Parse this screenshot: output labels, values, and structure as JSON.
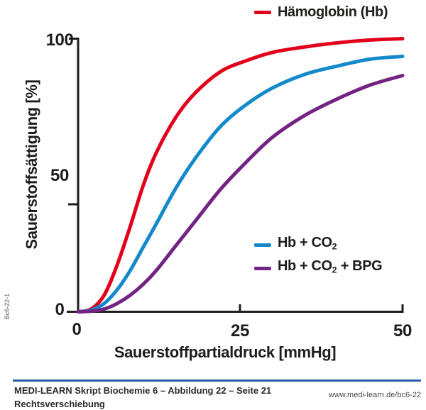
{
  "watermark": "Bc6-22-1",
  "chart_data": {
    "type": "line",
    "title": "",
    "xlabel": "Sauerstoffpartialdruck [mmHg]",
    "ylabel": "Sauerstoffsättigung [%]",
    "xlim": [
      0,
      50
    ],
    "ylim": [
      0,
      100
    ],
    "x_ticks": [
      0,
      25,
      50
    ],
    "y_ticks": [
      0,
      50,
      100
    ],
    "grid": false,
    "legend_position": "Hb top outside; Hb+CO2 and Hb+CO2+BPG inside lower-right",
    "x": [
      0,
      2,
      4,
      6,
      8,
      10,
      12,
      15,
      18,
      22,
      26,
      30,
      35,
      40,
      45,
      50
    ],
    "series": [
      {
        "id": "hb",
        "name": "Hämoglobin (Hb)",
        "color": "#e2001a",
        "values": [
          0,
          1,
          6,
          17,
          31,
          46,
          58,
          71,
          80,
          88,
          92,
          95,
          97,
          98.5,
          99.5,
          100
        ]
      },
      {
        "id": "hb-co2",
        "name": "Hb + CO2",
        "color": "#1489cb",
        "values": [
          0,
          0.6,
          3,
          8,
          15,
          23.5,
          32,
          45,
          56,
          68,
          76,
          82,
          87,
          90,
          92.5,
          93.5
        ]
      },
      {
        "id": "hb-co2-bpg",
        "name": "Hb + CO2 + BPG",
        "color": "#732382",
        "values": [
          0,
          0.2,
          1,
          3,
          6,
          10,
          15,
          24,
          33,
          45,
          55,
          64,
          72,
          78,
          83,
          86.5
        ]
      }
    ]
  },
  "legend": {
    "top": {
      "pre": "Hämoglobin (Hb)",
      "sub": "",
      "post": ""
    },
    "items": [
      {
        "pre": "Hb + CO",
        "sub": "2",
        "post": ""
      },
      {
        "pre": "Hb + CO",
        "sub": "2",
        "post": " + BPG"
      }
    ]
  },
  "axes": {
    "y_title": "Sauerstoffsättigung [%]",
    "x_title": "Sauerstoffpartialdruck [mmHg]",
    "y_tick_labels": [
      "100",
      "50",
      "0"
    ],
    "x_tick_labels": [
      "0",
      "25",
      "50"
    ],
    "axis_color": "#1d1d1b"
  },
  "footer": {
    "line1": "MEDI-LEARN Skript Biochemie 6 – Abbildung 22 – Seite 21",
    "line2": "Rechtsverschiebung",
    "url": "www.medi-learn.de/bc6-22",
    "rule_color": "#2a5caa"
  }
}
